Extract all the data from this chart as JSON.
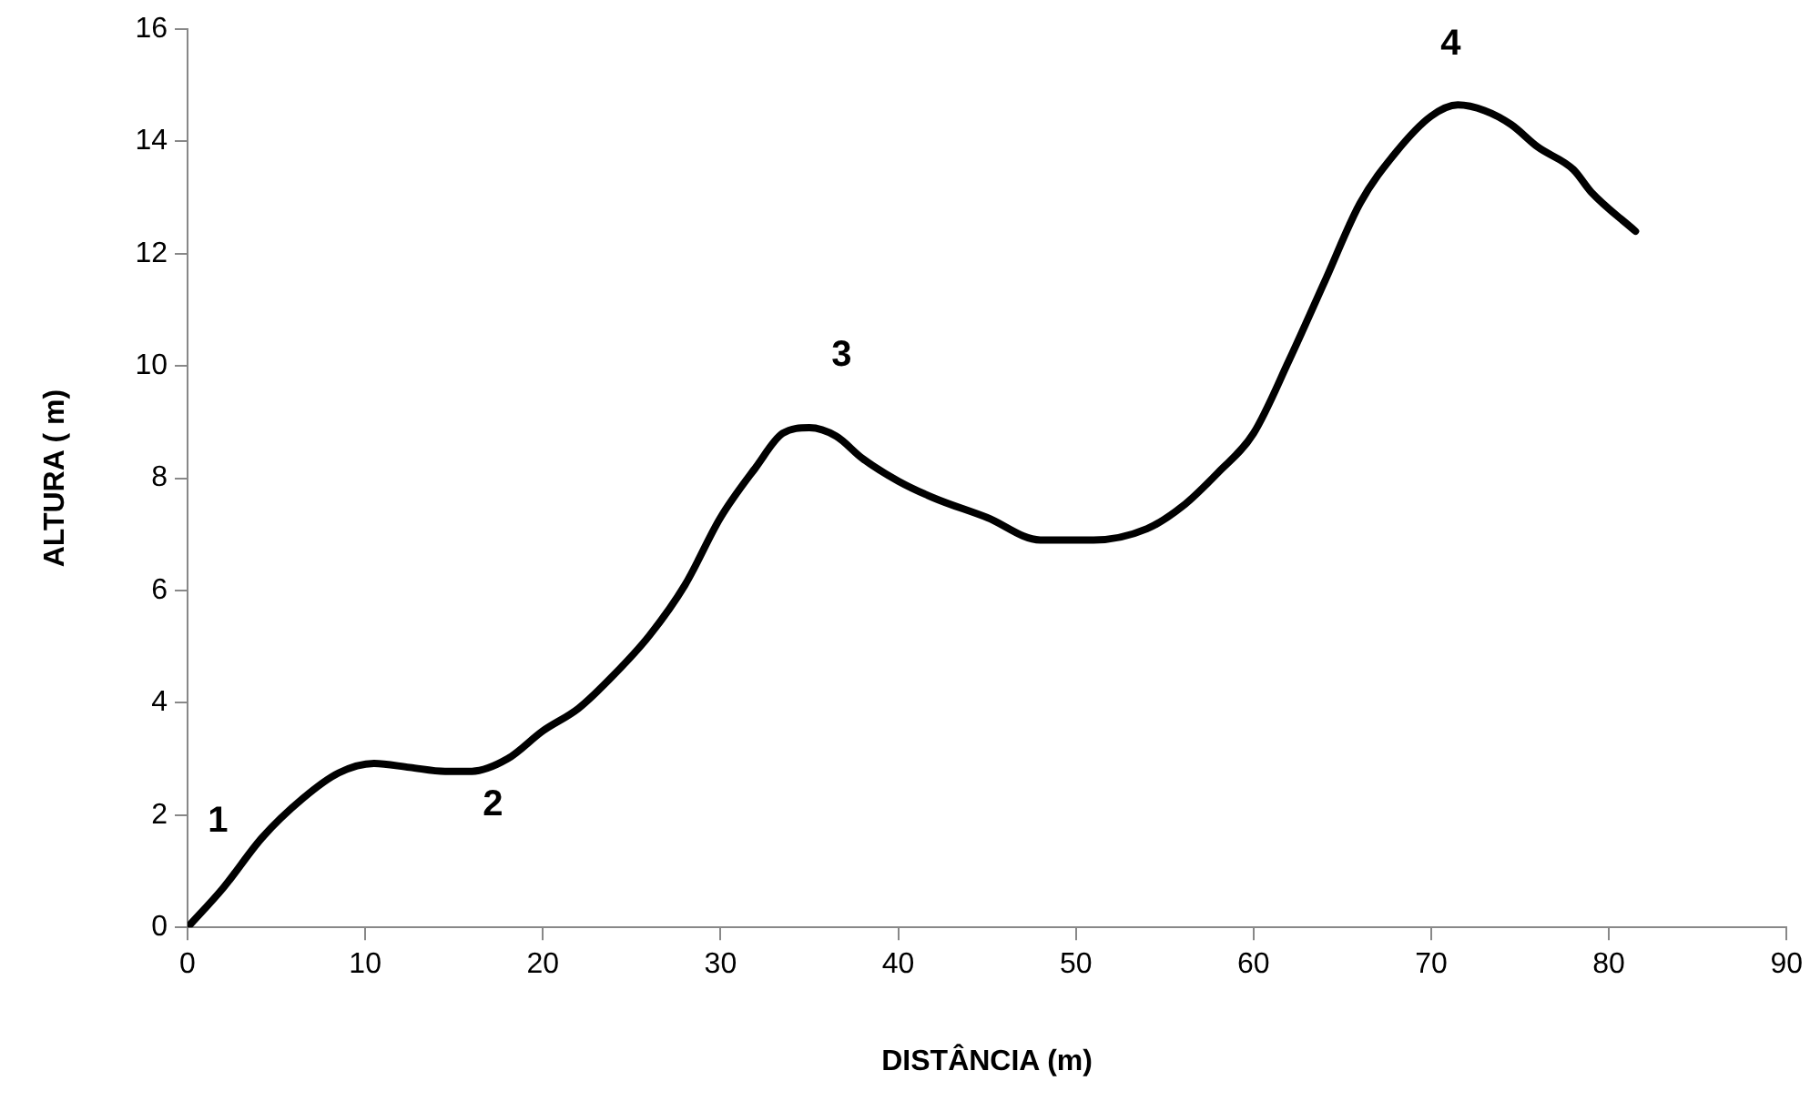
{
  "chart_data": {
    "type": "line",
    "xlabel": "DISTÂNCIA (m)",
    "ylabel": "ALTURA ( m)",
    "xlim": [
      0,
      90
    ],
    "xticks": [
      0,
      10,
      20,
      30,
      40,
      50,
      60,
      70,
      80,
      90
    ],
    "ylim": [
      0,
      16
    ],
    "yticks": [
      0,
      2,
      4,
      6,
      8,
      10,
      12,
      14,
      16
    ],
    "grid": false,
    "legend": false,
    "marker": "none",
    "line_style": "solid",
    "series": [
      {
        "color": "#000000",
        "x": [
          0,
          2,
          4.2,
          6.5,
          8.5,
          10.5,
          12.5,
          14.5,
          16,
          18,
          20,
          22,
          24,
          26,
          28,
          30,
          32,
          33.5,
          35,
          36.5,
          38,
          40,
          42,
          45,
          48,
          51,
          54,
          56,
          58,
          60,
          62,
          64,
          66,
          68,
          70,
          71.5,
          73,
          74.5,
          76,
          78,
          79,
          81.5
        ],
        "values": [
          0,
          0.7,
          1.6,
          2.3,
          2.75,
          2.92,
          2.85,
          2.78,
          2.78,
          3.0,
          3.5,
          3.9,
          4.5,
          5.2,
          6.1,
          7.3,
          8.2,
          8.8,
          8.9,
          8.75,
          8.35,
          7.95,
          7.65,
          7.3,
          6.9,
          6.9,
          7.1,
          7.5,
          8.1,
          8.8,
          10.1,
          11.5,
          12.9,
          13.8,
          14.45,
          14.65,
          14.55,
          14.3,
          13.9,
          13.5,
          13.1,
          12.4
        ]
      }
    ],
    "annotations": [
      "1",
      "2",
      "3",
      "4"
    ]
  }
}
